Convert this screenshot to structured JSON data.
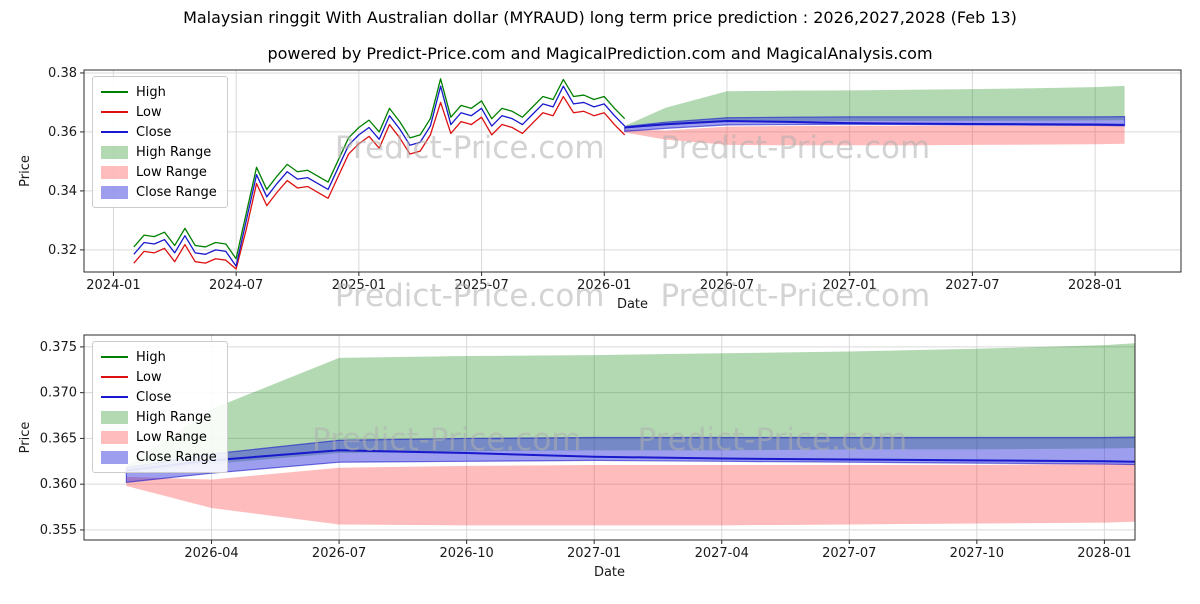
{
  "page": {
    "title": "Malaysian ringgit With Australian dollar (MYRAUD) long term price prediction : 2026,2027,2028 (Feb 13)",
    "subtitle": "powered by Predict-Price.com and MagicalPrediction.com and MagicalAnalysis.com",
    "watermark": "Predict-Price.com"
  },
  "colors": {
    "high": "#008000",
    "low": "#dd1111",
    "close": "#1818cc",
    "high_range_fill": "#008000",
    "high_range_opacity": 0.3,
    "low_range_fill": "#ff2222",
    "low_range_opacity": 0.3,
    "close_range_fill": "#2828dc",
    "close_range_opacity": 0.45,
    "grid": "#d9d9d9",
    "axis": "#2b2b2b",
    "watermark": "#afafaf"
  },
  "chart_data": [
    {
      "type": "line",
      "name": "full-history-and-prediction",
      "xlabel": "Date",
      "ylabel": "Price",
      "xlim": [
        2023.88,
        2028.35
      ],
      "ylim": [
        0.3125,
        0.381
      ],
      "xticks": [
        {
          "v": 2024.0,
          "label": "2024-01"
        },
        {
          "v": 2024.5,
          "label": "2024-07"
        },
        {
          "v": 2025.0,
          "label": "2025-01"
        },
        {
          "v": 2025.5,
          "label": "2025-07"
        },
        {
          "v": 2026.0,
          "label": "2026-01"
        },
        {
          "v": 2026.5,
          "label": "2026-07"
        },
        {
          "v": 2027.0,
          "label": "2027-01"
        },
        {
          "v": 2027.5,
          "label": "2027-07"
        },
        {
          "v": 2028.0,
          "label": "2028-01"
        }
      ],
      "yticks": [
        {
          "v": 0.32,
          "label": "0.32"
        },
        {
          "v": 0.34,
          "label": "0.34"
        },
        {
          "v": 0.36,
          "label": "0.36"
        },
        {
          "v": 0.38,
          "label": "0.38"
        }
      ],
      "legend": [
        "High",
        "Low",
        "Close",
        "High Range",
        "Low Range",
        "Close Range"
      ],
      "historical": {
        "x_start": 2024.083,
        "x_step": 0.04167,
        "high": [
          0.321,
          0.325,
          0.3245,
          0.326,
          0.3215,
          0.3273,
          0.3215,
          0.321,
          0.3225,
          0.322,
          0.317,
          0.3325,
          0.348,
          0.3405,
          0.345,
          0.349,
          0.3465,
          0.347,
          0.345,
          0.343,
          0.3505,
          0.358,
          0.3615,
          0.364,
          0.36,
          0.368,
          0.3635,
          0.358,
          0.359,
          0.3645,
          0.378,
          0.365,
          0.369,
          0.368,
          0.3705,
          0.3645,
          0.368,
          0.367,
          0.365,
          0.3685,
          0.372,
          0.371,
          0.3778,
          0.372,
          0.3725,
          0.371,
          0.372,
          0.368,
          0.3645
        ],
        "low": [
          0.3155,
          0.3195,
          0.319,
          0.3205,
          0.316,
          0.3218,
          0.316,
          0.3155,
          0.317,
          0.3165,
          0.3135,
          0.327,
          0.3425,
          0.335,
          0.3395,
          0.3435,
          0.341,
          0.3415,
          0.3395,
          0.3375,
          0.345,
          0.3525,
          0.356,
          0.3585,
          0.3545,
          0.3625,
          0.358,
          0.3525,
          0.3535,
          0.359,
          0.37,
          0.3595,
          0.3635,
          0.3625,
          0.365,
          0.359,
          0.3625,
          0.3615,
          0.3595,
          0.363,
          0.3665,
          0.3655,
          0.372,
          0.3665,
          0.367,
          0.3655,
          0.3665,
          0.3625,
          0.359
        ],
        "close": [
          0.3185,
          0.3225,
          0.322,
          0.3235,
          0.319,
          0.3248,
          0.319,
          0.3185,
          0.32,
          0.3195,
          0.3145,
          0.33,
          0.3455,
          0.338,
          0.3425,
          0.3465,
          0.344,
          0.3445,
          0.3425,
          0.3405,
          0.348,
          0.3555,
          0.359,
          0.3615,
          0.3575,
          0.3655,
          0.361,
          0.3555,
          0.3565,
          0.362,
          0.3755,
          0.3625,
          0.3665,
          0.3655,
          0.368,
          0.362,
          0.3655,
          0.3645,
          0.3625,
          0.366,
          0.3695,
          0.3685,
          0.3755,
          0.3695,
          0.37,
          0.3685,
          0.3695,
          0.3655,
          0.362
        ]
      },
      "forecast": {
        "x": [
          2026.083,
          2026.25,
          2026.5,
          2026.75,
          2027.0,
          2027.25,
          2027.5,
          2027.75,
          2028.0,
          2028.12
        ],
        "high_top": [
          0.362,
          0.3682,
          0.3738,
          0.374,
          0.3741,
          0.3743,
          0.3745,
          0.3748,
          0.3752,
          0.3756
        ],
        "high_bottom": [
          0.3612,
          0.3622,
          0.3634,
          0.3636,
          0.3637,
          0.3637,
          0.3638,
          0.3638,
          0.3639,
          0.364
        ],
        "low_top": [
          0.3608,
          0.3605,
          0.3618,
          0.362,
          0.3621,
          0.3621,
          0.3621,
          0.3621,
          0.3622,
          0.3622
        ],
        "low_bottom": [
          0.3598,
          0.3574,
          0.3556,
          0.3555,
          0.3555,
          0.3555,
          0.3556,
          0.3557,
          0.3558,
          0.356
        ],
        "close_top": [
          0.3618,
          0.3633,
          0.3648,
          0.365,
          0.3651,
          0.3651,
          0.3651,
          0.3651,
          0.3651,
          0.3652
        ],
        "close_bottom": [
          0.3602,
          0.3612,
          0.3624,
          0.3625,
          0.3626,
          0.3625,
          0.3624,
          0.3623,
          0.3622,
          0.3621
        ],
        "close": [
          0.3615,
          0.3626,
          0.3637,
          0.3634,
          0.363,
          0.3628,
          0.3627,
          0.3626,
          0.3625,
          0.3624
        ]
      }
    },
    {
      "type": "line",
      "name": "prediction-zoom",
      "xlabel": "Date",
      "ylabel": "Price",
      "xlim": [
        2026.0,
        2028.06
      ],
      "ylim": [
        0.3539,
        0.3763
      ],
      "xticks": [
        {
          "v": 2026.25,
          "label": "2026-04"
        },
        {
          "v": 2026.5,
          "label": "2026-07"
        },
        {
          "v": 2026.75,
          "label": "2026-10"
        },
        {
          "v": 2027.0,
          "label": "2027-01"
        },
        {
          "v": 2027.25,
          "label": "2027-04"
        },
        {
          "v": 2027.5,
          "label": "2027-07"
        },
        {
          "v": 2027.75,
          "label": "2027-10"
        },
        {
          "v": 2028.0,
          "label": "2028-01"
        }
      ],
      "yticks": [
        {
          "v": 0.355,
          "label": "0.355"
        },
        {
          "v": 0.36,
          "label": "0.360"
        },
        {
          "v": 0.365,
          "label": "0.365"
        },
        {
          "v": 0.37,
          "label": "0.370"
        },
        {
          "v": 0.375,
          "label": "0.375"
        }
      ],
      "legend": [
        "High",
        "Low",
        "Close",
        "High Range",
        "Low Range",
        "Close Range"
      ],
      "forecast": {
        "x": [
          2026.083,
          2026.25,
          2026.5,
          2026.75,
          2027.0,
          2027.25,
          2027.5,
          2027.75,
          2028.0,
          2028.12
        ],
        "high_top": [
          0.362,
          0.3682,
          0.3738,
          0.374,
          0.3741,
          0.3743,
          0.3745,
          0.3748,
          0.3752,
          0.3756
        ],
        "high_bottom": [
          0.3612,
          0.3622,
          0.3634,
          0.3636,
          0.3637,
          0.3637,
          0.3638,
          0.3638,
          0.3639,
          0.364
        ],
        "low_top": [
          0.3608,
          0.3605,
          0.3618,
          0.362,
          0.3621,
          0.3621,
          0.3621,
          0.3621,
          0.3622,
          0.3622
        ],
        "low_bottom": [
          0.3598,
          0.3574,
          0.3556,
          0.3555,
          0.3555,
          0.3555,
          0.3556,
          0.3557,
          0.3558,
          0.356
        ],
        "close_top": [
          0.3618,
          0.3633,
          0.3648,
          0.365,
          0.3651,
          0.3651,
          0.3651,
          0.3651,
          0.3651,
          0.3652
        ],
        "close_bottom": [
          0.3602,
          0.3612,
          0.3624,
          0.3625,
          0.3626,
          0.3625,
          0.3624,
          0.3623,
          0.3622,
          0.3621
        ],
        "close": [
          0.3615,
          0.3626,
          0.3637,
          0.3634,
          0.363,
          0.3628,
          0.3627,
          0.3626,
          0.3625,
          0.3624
        ]
      }
    }
  ]
}
